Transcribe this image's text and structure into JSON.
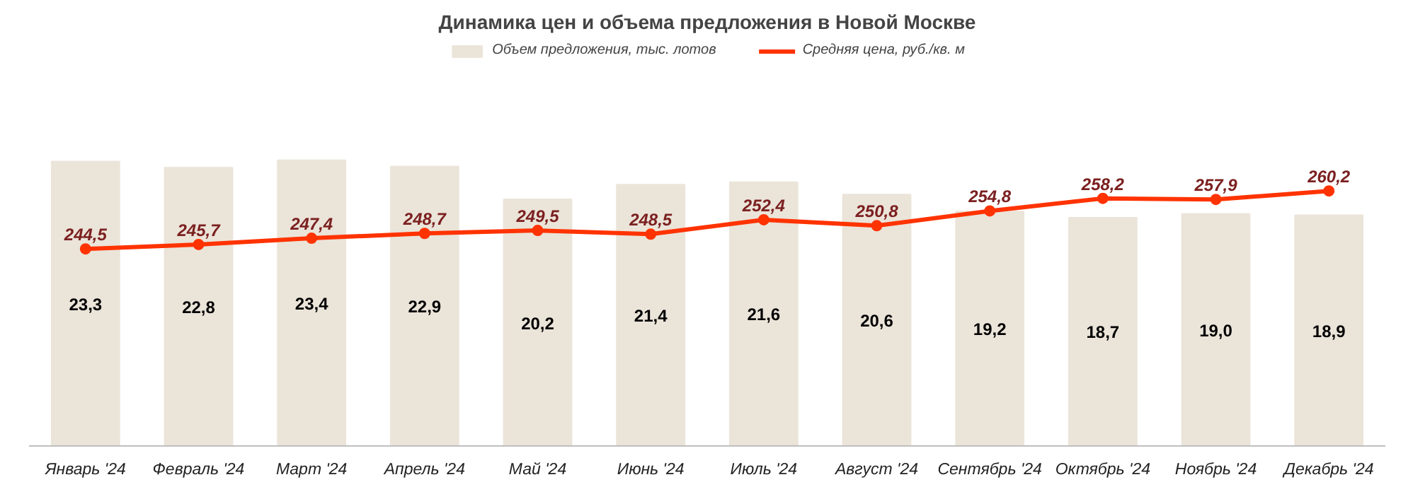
{
  "chart_data": {
    "type": "bar",
    "title": "Динамика цен и объема предложения в Новой Москве",
    "categories": [
      "Январь '24",
      "Февраль '24",
      "Март '24",
      "Апрель '24",
      "Май '24",
      "Июнь '24",
      "Июль '24",
      "Август '24",
      "Сентябрь '24",
      "Октябрь '24",
      "Ноябрь '24",
      "Декабрь '24"
    ],
    "series": [
      {
        "name": "Объем предложения, тыс. лотов",
        "color": "#ebe4d9",
        "values": [
          23.3,
          22.8,
          23.4,
          22.9,
          20.2,
          21.4,
          21.6,
          20.6,
          19.2,
          18.7,
          19.0,
          18.9
        ],
        "value_labels": [
          "23,3",
          "22,8",
          "23,4",
          "22,9",
          "20,2",
          "21,4",
          "21,6",
          "20,6",
          "19,2",
          "18,7",
          "19,0",
          "18,9"
        ]
      },
      {
        "name": "Средняя цена, руб./кв. м",
        "type": "line",
        "axis": "y2",
        "color": "#ff3300",
        "marker": "circle",
        "values": [
          244.5,
          245.7,
          247.4,
          248.7,
          249.5,
          248.5,
          252.4,
          250.8,
          254.8,
          258.2,
          257.9,
          260.2
        ],
        "value_labels": [
          "244,5",
          "245,7",
          "247,4",
          "248,7",
          "249,5",
          "248,5",
          "252,4",
          "250,8",
          "254,8",
          "258,2",
          "257,9",
          "260,2"
        ]
      }
    ],
    "legend": "top",
    "tick_labels": "x"
  }
}
